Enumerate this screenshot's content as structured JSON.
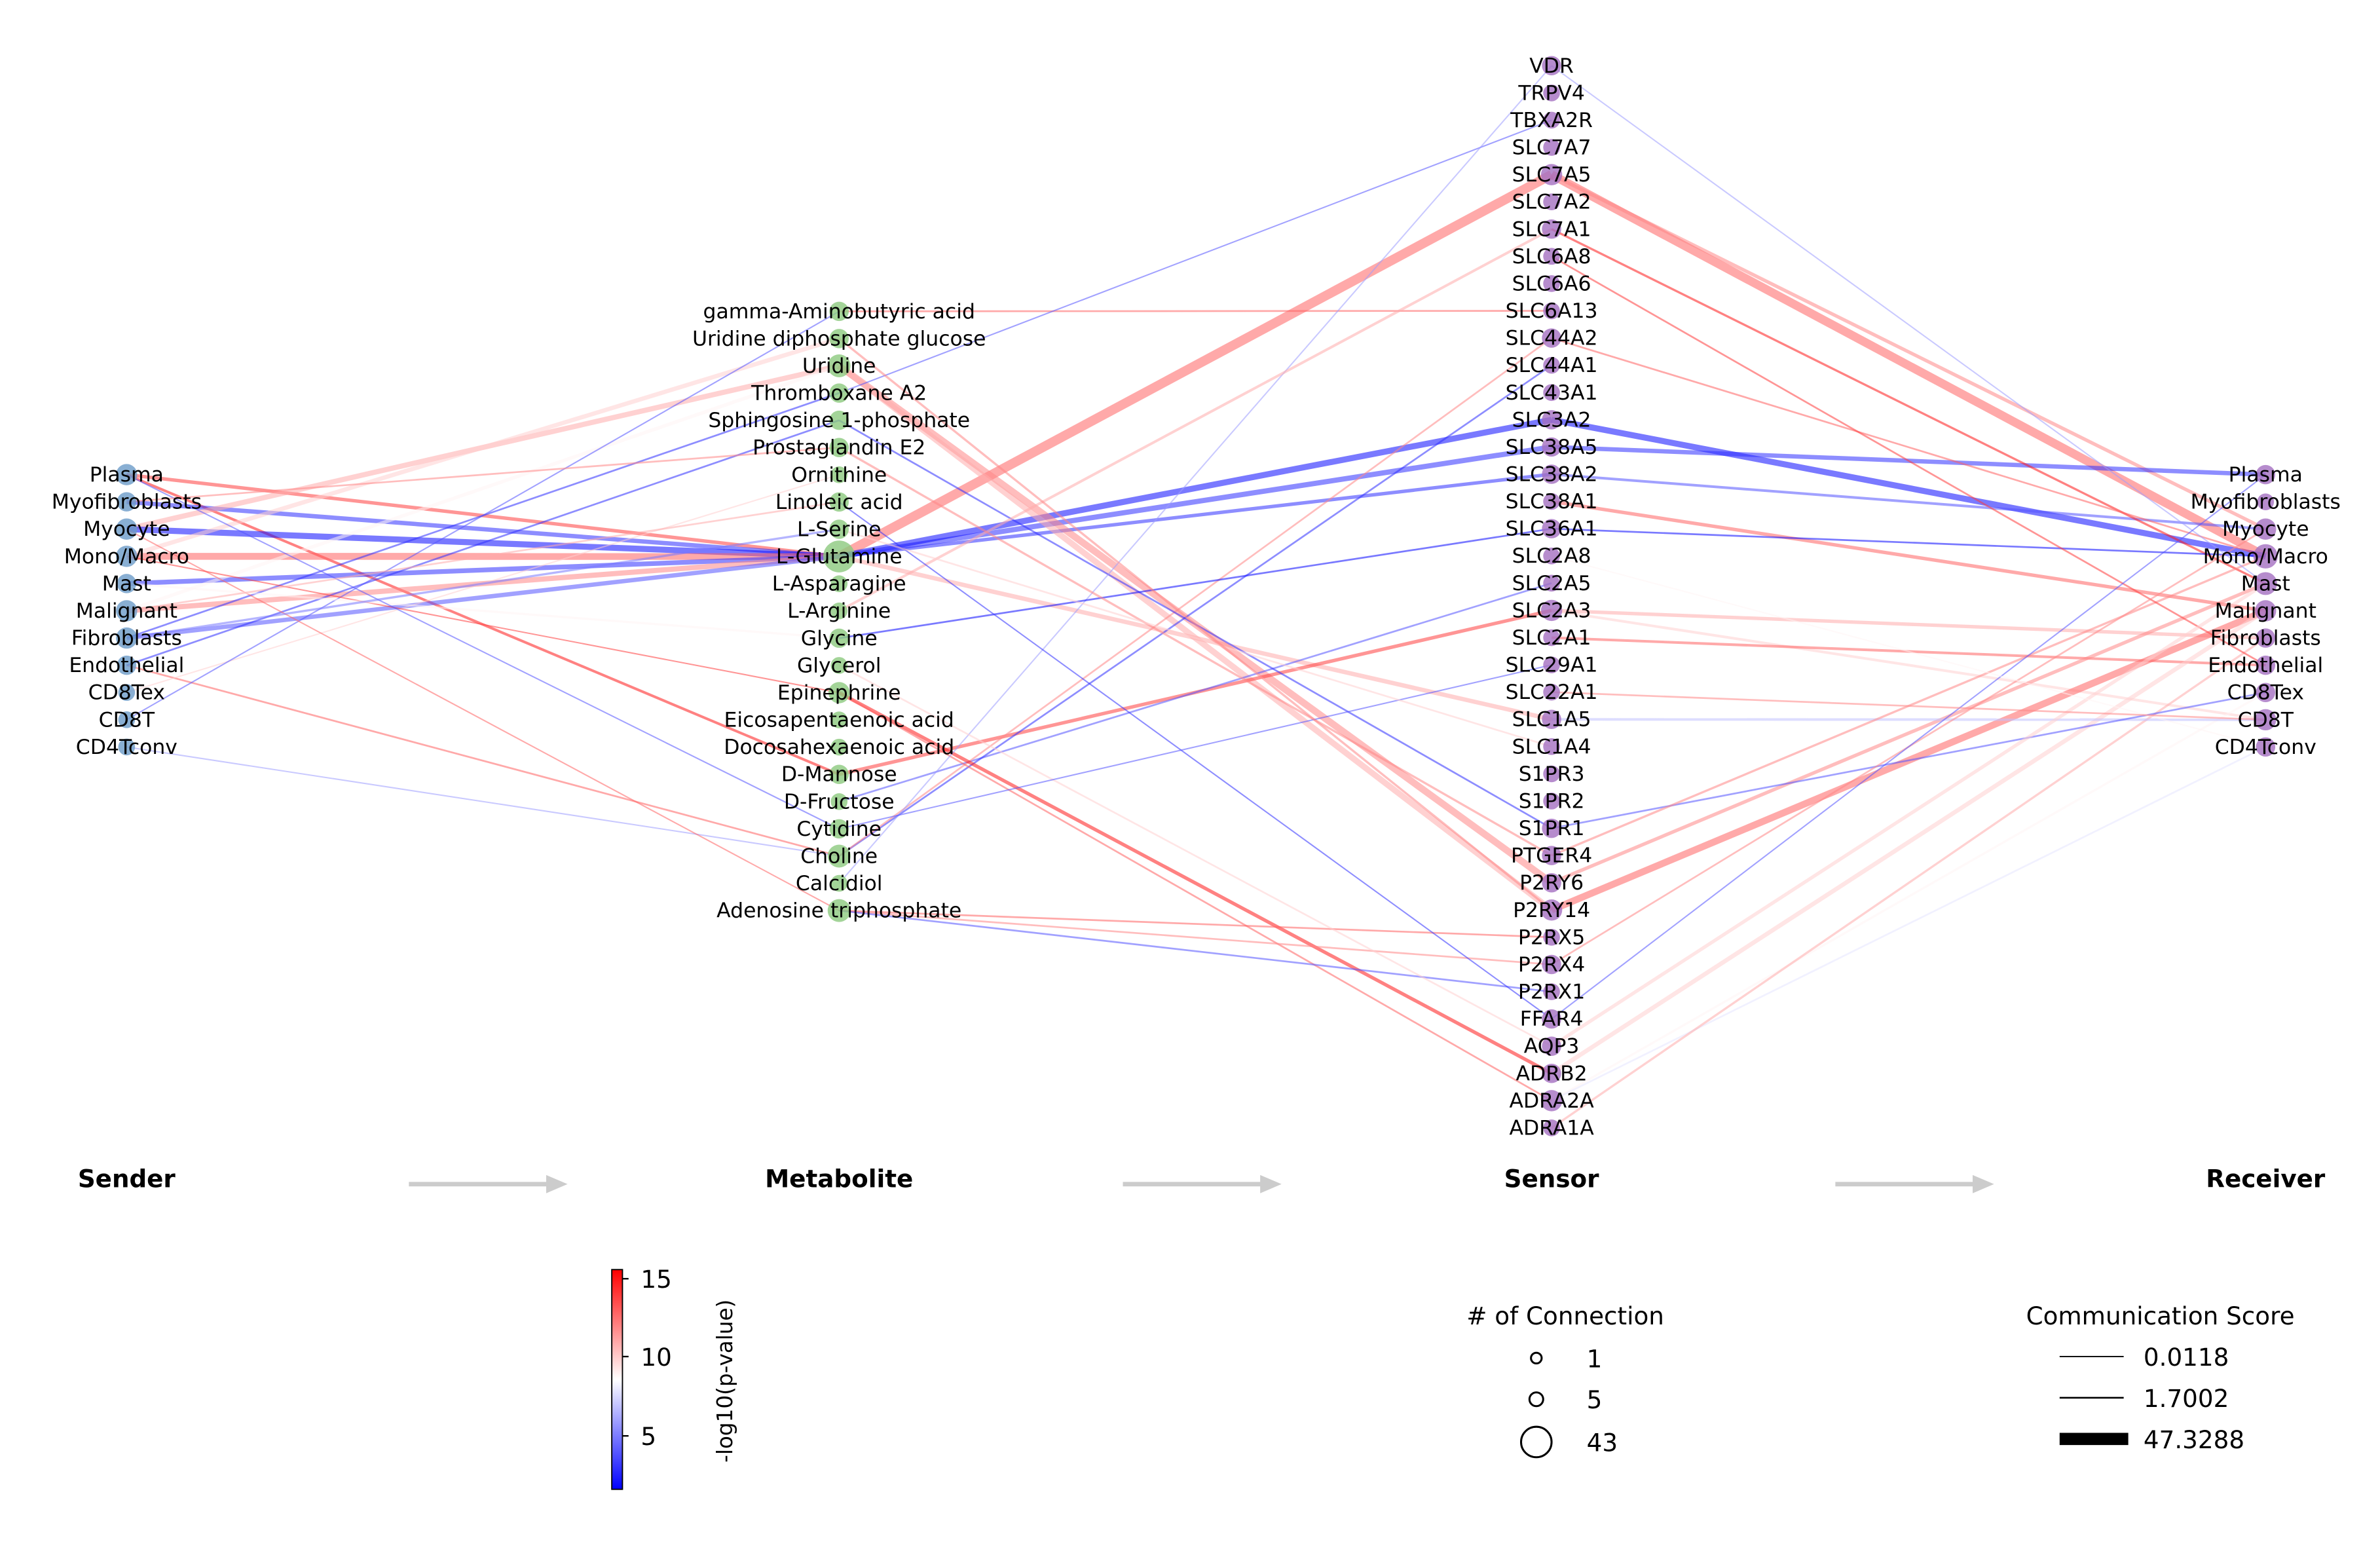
{
  "stages": {
    "sender": "Sender",
    "metabolite": "Metabolite",
    "sensor": "Sensor",
    "receiver": "Receiver"
  },
  "senders": [
    "Plasma",
    "Myofibroblasts",
    "Myocyte",
    "Mono/Macro",
    "Mast",
    "Malignant",
    "Fibroblasts",
    "Endothelial",
    "CD8Tex",
    "CD8T",
    "CD4Tconv"
  ],
  "metabolites": [
    "gamma-Aminobutyric acid",
    "Uridine diphosphate glucose",
    "Uridine",
    "Thromboxane A2",
    "Sphingosine 1-phosphate",
    "Prostaglandin E2",
    "Ornithine",
    "Linoleic acid",
    "L-Serine",
    "L-Glutamine",
    "L-Asparagine",
    "L-Arginine",
    "Glycine",
    "Glycerol",
    "Epinephrine",
    "Eicosapentaenoic acid",
    "Docosahexaenoic acid",
    "D-Mannose",
    "D-Fructose",
    "Cytidine",
    "Choline",
    "Calcidiol",
    "Adenosine triphosphate"
  ],
  "sensors": [
    "VDR",
    "TRPV4",
    "TBXA2R",
    "SLC7A7",
    "SLC7A5",
    "SLC7A2",
    "SLC7A1",
    "SLC6A8",
    "SLC6A6",
    "SLC6A13",
    "SLC44A2",
    "SLC44A1",
    "SLC43A1",
    "SLC3A2",
    "SLC38A5",
    "SLC38A2",
    "SLC38A1",
    "SLC36A1",
    "SLC2A8",
    "SLC2A5",
    "SLC2A3",
    "SLC2A1",
    "SLC29A1",
    "SLC22A1",
    "SLC1A5",
    "SLC1A4",
    "S1PR3",
    "S1PR2",
    "S1PR1",
    "PTGER4",
    "P2RY6",
    "P2RY14",
    "P2RX5",
    "P2RX4",
    "P2RX1",
    "FFAR4",
    "AQP3",
    "ADRB2",
    "ADRA2A",
    "ADRA1A"
  ],
  "receivers": [
    "Plasma",
    "Myofibroblasts",
    "Myocyte",
    "Mono/Macro",
    "Mast",
    "Malignant",
    "Fibroblasts",
    "Endothelial",
    "CD8Tex",
    "CD8T",
    "CD4Tconv"
  ],
  "colors": {
    "sender_node": "#6b9bc8",
    "metabolite_node": "#8cc97e",
    "sensor_node": "#a46fc0",
    "receiver_node": "#a46fc0",
    "low": "#0000ff",
    "mid": "#ffffff",
    "high": "#ff0000"
  },
  "colorbar": {
    "label": "-log10(p-value)",
    "ticks": [
      "5",
      "10",
      "15"
    ],
    "range": [
      1.7,
      15.7
    ]
  },
  "connection_legend": {
    "title": "# of Connection",
    "items": [
      "1",
      "5",
      "43"
    ]
  },
  "score_legend": {
    "title": "Communication Score",
    "items": [
      "0.0118",
      "1.7002",
      "47.3288"
    ]
  },
  "chart_data": {
    "type": "sankey-network",
    "edges_sender_metabolite": [
      [
        "Plasma",
        "L-Glutamine",
        14,
        6
      ],
      [
        "Plasma",
        "D-Mannose",
        15,
        4
      ],
      [
        "Myofibroblasts",
        "L-Glutamine",
        3,
        8
      ],
      [
        "Myocyte",
        "Uridine",
        11,
        10
      ],
      [
        "Myocyte",
        "L-Glutamine",
        2,
        12
      ],
      [
        "Mono/Macro",
        "L-Glutamine",
        13,
        14
      ],
      [
        "Mono/Macro",
        "Uridine diphosphate glucose",
        10,
        8
      ],
      [
        "Mast",
        "L-Glutamine",
        3,
        9
      ],
      [
        "Malignant",
        "L-Glutamine",
        12,
        10
      ],
      [
        "Malignant",
        "Uridine",
        9,
        6
      ],
      [
        "Fibroblasts",
        "L-Glutamine",
        4,
        8
      ],
      [
        "Fibroblasts",
        "Thromboxane A2",
        3,
        2
      ],
      [
        "Endothelial",
        "Choline",
        13,
        2
      ],
      [
        "Endothelial",
        "Sphingosine 1-phosphate",
        3,
        2
      ],
      [
        "CD8Tex",
        "Ornithine",
        10,
        1
      ],
      [
        "CD8T",
        "gamma-Aminobutyric acid",
        4,
        1
      ],
      [
        "CD4Tconv",
        "Choline",
        6,
        1
      ],
      [
        "Myocyte",
        "Adenosine triphosphate",
        13,
        1
      ],
      [
        "Mono/Macro",
        "Epinephrine",
        14,
        1
      ],
      [
        "Mast",
        "Glycine",
        9,
        3
      ],
      [
        "Plasma",
        "Cytidine",
        4,
        1
      ],
      [
        "Myofibroblasts",
        "Prostaglandin E2",
        12,
        2
      ],
      [
        "Malignant",
        "Linoleic acid",
        11,
        2
      ],
      [
        "Fibroblasts",
        "L-Serine",
        5,
        3
      ]
    ],
    "edges_metabolite_sensor": [
      [
        "L-Glutamine",
        "SLC7A5",
        13,
        20
      ],
      [
        "L-Glutamine",
        "SLC38A5",
        3,
        10
      ],
      [
        "L-Glutamine",
        "SLC3A2",
        2,
        12
      ],
      [
        "L-Glutamine",
        "SLC38A2",
        3,
        6
      ],
      [
        "L-Glutamine",
        "SLC1A5",
        11,
        8
      ],
      [
        "Uridine",
        "P2RY6",
        12,
        14
      ],
      [
        "Uridine",
        "P2RY14",
        11,
        12
      ],
      [
        "D-Mannose",
        "SLC2A3",
        14,
        6
      ],
      [
        "D-Fructose",
        "SLC2A5",
        4,
        2
      ],
      [
        "gamma-Aminobutyric acid",
        "SLC6A13",
        13,
        2
      ],
      [
        "Choline",
        "SLC44A1",
        3,
        2
      ],
      [
        "Choline",
        "SLC44A2",
        12,
        2
      ],
      [
        "Epinephrine",
        "ADRB2",
        15,
        6
      ],
      [
        "Epinephrine",
        "ADRA2A",
        13,
        2
      ],
      [
        "Adenosine triphosphate",
        "P2RX5",
        13,
        2
      ],
      [
        "Adenosine triphosphate",
        "P2RX4",
        12,
        2
      ],
      [
        "Adenosine triphosphate",
        "P2RX1",
        4,
        2
      ],
      [
        "Sphingosine 1-phosphate",
        "S1PR1",
        3,
        2
      ],
      [
        "Thromboxane A2",
        "TBXA2R",
        4,
        1
      ],
      [
        "Calcidiol",
        "VDR",
        6,
        1
      ],
      [
        "L-Arginine",
        "SLC7A1",
        11,
        4
      ],
      [
        "Glycine",
        "SLC36A1",
        2,
        2
      ],
      [
        "Prostaglandin E2",
        "PTGER4",
        12,
        3
      ],
      [
        "Linoleic acid",
        "FFAR4",
        3,
        1
      ],
      [
        "Glycerol",
        "AQP3",
        10,
        2
      ],
      [
        "Cytidine",
        "SLC29A1",
        4,
        1
      ],
      [
        "L-Serine",
        "SLC1A4",
        10,
        2
      ],
      [
        "Uridine diphosphate glucose",
        "P2RY14",
        12,
        3
      ]
    ],
    "edges_sensor_receiver": [
      [
        "SLC7A5",
        "Mono/Macro",
        13,
        18
      ],
      [
        "SLC7A5",
        "Myocyte",
        12,
        6
      ],
      [
        "SLC3A2",
        "Mono/Macro",
        2,
        12
      ],
      [
        "SLC38A5",
        "Plasma",
        3,
        8
      ],
      [
        "SLC38A2",
        "Myocyte",
        4,
        4
      ],
      [
        "SLC38A1",
        "Malignant",
        13,
        6
      ],
      [
        "SLC2A3",
        "Fibroblasts",
        11,
        6
      ],
      [
        "SLC2A3",
        "CD8T",
        10,
        4
      ],
      [
        "SLC2A1",
        "Endothelial",
        13,
        4
      ],
      [
        "P2RY14",
        "Malignant",
        13,
        14
      ],
      [
        "P2RY6",
        "Mast",
        12,
        6
      ],
      [
        "ADRB2",
        "Malignant",
        10,
        8
      ],
      [
        "ADRA2A",
        "CD8Tex",
        9,
        3
      ],
      [
        "ADRA2A",
        "CD4Tconv",
        8,
        2
      ],
      [
        "ADRA1A",
        "Fibroblasts",
        11,
        3
      ],
      [
        "SLC7A1",
        "Mast",
        15,
        3
      ],
      [
        "SLC44A2",
        "Mono/Macro",
        13,
        2
      ],
      [
        "SLC1A5",
        "CD8T",
        7,
        4
      ],
      [
        "S1PR1",
        "CD8Tex",
        4,
        2
      ],
      [
        "PTGER4",
        "Mono/Macro",
        12,
        3
      ],
      [
        "VDR",
        "Mast",
        6,
        1
      ],
      [
        "SLC36A1",
        "Mono/Macro",
        2,
        2
      ],
      [
        "SLC6A8",
        "Endothelial",
        14,
        2
      ],
      [
        "AQP3",
        "Mast",
        10,
        6
      ],
      [
        "P2RX4",
        "Myocyte",
        12,
        2
      ],
      [
        "FFAR4",
        "Plasma",
        4,
        1
      ],
      [
        "SLC2A8",
        "CD4Tconv",
        9,
        1
      ],
      [
        "SLC22A1",
        "CD8T",
        12,
        2
      ]
    ]
  }
}
